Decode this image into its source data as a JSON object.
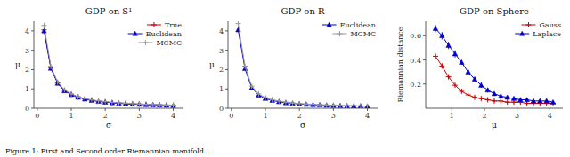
{
  "chart_data": [
    {
      "type": "line",
      "title": "GDP on S¹",
      "xlabel": "σ",
      "ylabel": "μ",
      "x": [
        0.2,
        0.4,
        0.6,
        0.8,
        1.0,
        1.2,
        1.4,
        1.6,
        1.8,
        2.0,
        2.2,
        2.4,
        2.6,
        2.8,
        3.0,
        3.2,
        3.4,
        3.6,
        3.8,
        4.0
      ],
      "xlim": [
        -0.1,
        4.3
      ],
      "ylim": [
        0,
        4.5
      ],
      "xticks": [
        0,
        1,
        2,
        3,
        4
      ],
      "yticks": [
        0,
        1,
        2,
        3,
        4
      ],
      "legend": "upper right",
      "series": [
        {
          "name": "True",
          "color": "#cc0000",
          "marker": "plus",
          "line_style": "solid",
          "values": [
            4.05,
            2.1,
            1.32,
            0.92,
            0.72,
            0.58,
            0.48,
            0.42,
            0.37,
            0.33,
            0.29,
            0.27,
            0.25,
            0.23,
            0.21,
            0.2,
            0.18,
            0.17,
            0.16,
            0.15
          ],
          "errors": [
            0.04,
            0.04,
            0.03,
            0.02,
            0.02,
            0.02,
            0.01,
            0.01,
            0.01,
            0.01,
            0.01,
            0.01,
            0.01,
            0.01,
            0.01,
            0.01,
            0.01,
            0.01,
            0.01,
            0.01
          ]
        },
        {
          "name": "Euclidean",
          "color": "#0000cc",
          "marker": "triangle",
          "line_style": "solid",
          "values": [
            4.0,
            2.07,
            1.29,
            0.9,
            0.7,
            0.56,
            0.47,
            0.4,
            0.35,
            0.31,
            0.28,
            0.25,
            0.23,
            0.21,
            0.2,
            0.18,
            0.17,
            0.16,
            0.15,
            0.14
          ],
          "errors": [
            0.05,
            0.04,
            0.03,
            0.02,
            0.02,
            0.02,
            0.01,
            0.01,
            0.01,
            0.01,
            0.01,
            0.01,
            0.01,
            0.01,
            0.01,
            0.01,
            0.01,
            0.01,
            0.01,
            0.01
          ]
        },
        {
          "name": "MCMC",
          "color": "#999999",
          "marker": "plus",
          "line_style": "solid",
          "values": [
            4.28,
            2.17,
            1.35,
            0.95,
            0.74,
            0.6,
            0.5,
            0.43,
            0.38,
            0.34,
            0.3,
            0.28,
            0.26,
            0.24,
            0.22,
            0.2,
            0.19,
            0.18,
            0.17,
            0.16
          ],
          "errors": [
            0.07,
            0.06,
            0.04,
            0.03,
            0.03,
            0.02,
            0.02,
            0.02,
            0.01,
            0.01,
            0.01,
            0.01,
            0.01,
            0.01,
            0.01,
            0.01,
            0.01,
            0.01,
            0.01,
            0.01
          ]
        }
      ]
    },
    {
      "type": "line",
      "title": "GDP on R",
      "xlabel": "σ",
      "ylabel": "μ",
      "x": [
        0.2,
        0.4,
        0.6,
        0.8,
        1.0,
        1.2,
        1.4,
        1.6,
        1.8,
        2.0,
        2.2,
        2.4,
        2.6,
        2.8,
        3.0,
        3.2,
        3.4,
        3.6,
        3.8,
        4.0
      ],
      "xlim": [
        -0.1,
        4.3
      ],
      "ylim": [
        0,
        4.5
      ],
      "xticks": [
        0,
        1,
        2,
        3,
        4
      ],
      "yticks": [
        0,
        1,
        2,
        3,
        4
      ],
      "legend": "upper right",
      "series": [
        {
          "name": "Euclidean",
          "color": "#0000cc",
          "marker": "triangle",
          "line_style": "solid",
          "values": [
            4.05,
            2.05,
            1.05,
            0.68,
            0.5,
            0.4,
            0.33,
            0.28,
            0.25,
            0.22,
            0.2,
            0.18,
            0.17,
            0.15,
            0.14,
            0.13,
            0.12,
            0.12,
            0.11,
            0.1
          ],
          "errors": [
            0.06,
            0.05,
            0.04,
            0.03,
            0.02,
            0.02,
            0.02,
            0.01,
            0.01,
            0.01,
            0.01,
            0.01,
            0.01,
            0.01,
            0.01,
            0.01,
            0.01,
            0.01,
            0.01,
            0.01
          ]
        },
        {
          "name": "MCMC",
          "color": "#999999",
          "marker": "plus",
          "line_style": "solid",
          "values": [
            4.38,
            2.18,
            1.14,
            0.74,
            0.55,
            0.44,
            0.37,
            0.31,
            0.27,
            0.24,
            0.22,
            0.2,
            0.18,
            0.17,
            0.16,
            0.14,
            0.13,
            0.13,
            0.12,
            0.11
          ],
          "errors": [
            0.09,
            0.07,
            0.06,
            0.05,
            0.04,
            0.03,
            0.02,
            0.02,
            0.02,
            0.02,
            0.01,
            0.01,
            0.01,
            0.01,
            0.01,
            0.01,
            0.01,
            0.01,
            0.01,
            0.01
          ]
        }
      ]
    },
    {
      "type": "line",
      "title": "GDP on Sphere",
      "xlabel": "μ",
      "ylabel": "Riemannian distance",
      "x": [
        0.5,
        0.7,
        0.9,
        1.1,
        1.3,
        1.5,
        1.7,
        1.9,
        2.1,
        2.3,
        2.5,
        2.7,
        2.9,
        3.1,
        3.3,
        3.5,
        3.7,
        3.9,
        4.1
      ],
      "xlim": [
        0.2,
        4.4
      ],
      "ylim": [
        0.0,
        0.72
      ],
      "xticks": [
        1,
        2,
        3,
        4
      ],
      "yticks": [
        0.2,
        0.4,
        0.6
      ],
      "legend": "upper right",
      "series": [
        {
          "name": "Gauss",
          "color": "#cc0000",
          "marker": "plus",
          "line_style": "solid",
          "values": [
            0.43,
            0.35,
            0.26,
            0.19,
            0.14,
            0.11,
            0.09,
            0.08,
            0.07,
            0.06,
            0.06,
            0.05,
            0.05,
            0.05,
            0.04,
            0.04,
            0.04,
            0.04,
            0.04
          ],
          "errors": [
            0.02,
            0.02,
            0.02,
            0.01,
            0.01,
            0.01,
            0.01,
            0.01,
            0.01,
            0.01,
            0.01,
            0.01,
            0.01,
            0.01,
            0.01,
            0.01,
            0.01,
            0.01,
            0.01
          ]
        },
        {
          "name": "Laplace",
          "color": "#0000cc",
          "marker": "triangle",
          "line_style": "solid",
          "values": [
            0.66,
            0.6,
            0.52,
            0.45,
            0.38,
            0.3,
            0.24,
            0.19,
            0.15,
            0.12,
            0.1,
            0.09,
            0.08,
            0.07,
            0.07,
            0.06,
            0.06,
            0.06,
            0.05
          ],
          "errors": [
            0.03,
            0.03,
            0.03,
            0.03,
            0.02,
            0.02,
            0.02,
            0.02,
            0.02,
            0.01,
            0.01,
            0.01,
            0.01,
            0.01,
            0.01,
            0.01,
            0.01,
            0.01,
            0.01
          ]
        }
      ]
    }
  ],
  "caption": "Figure 1: First and Second order Riemannian manifold ..."
}
